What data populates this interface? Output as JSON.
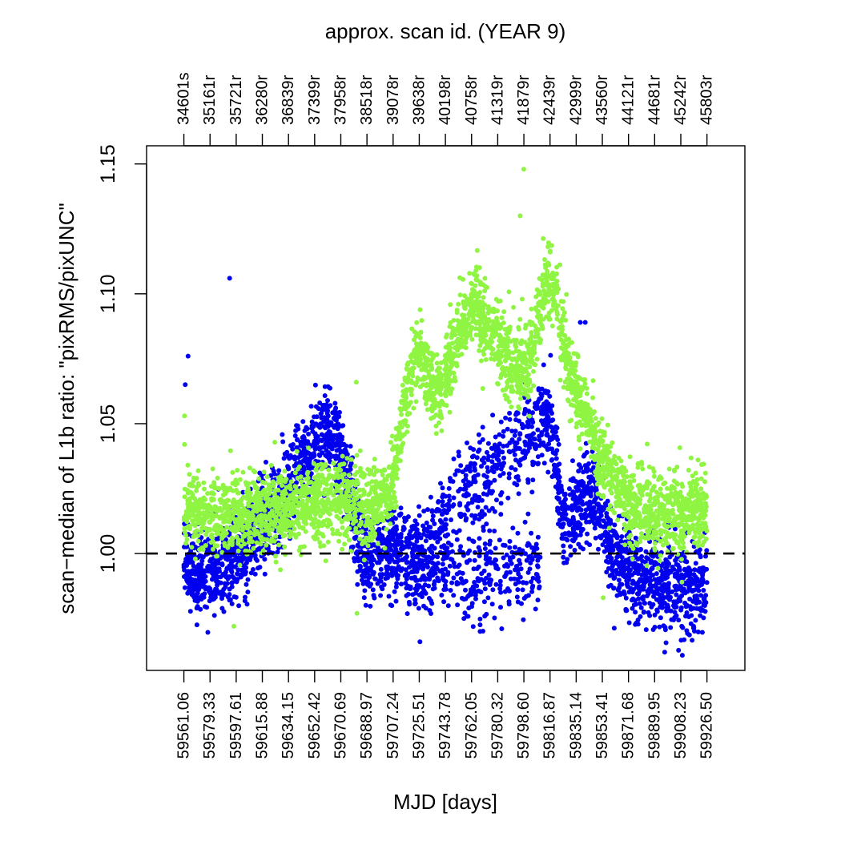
{
  "chart_data": {
    "type": "scatter",
    "title": "",
    "xlabel": "MJD [days]",
    "ylabel": "scan−median of L1b ratio: \"pixRMS/pixUNC\"",
    "top_axis_label": "approx. scan id. (YEAR 9)",
    "x_range": [
      59535.0,
      59953.0
    ],
    "ylim": [
      0.955,
      1.157
    ],
    "y_ticks": [
      1.0,
      1.05,
      1.1,
      1.15
    ],
    "y_tick_labels": [
      "1.00",
      "1.05",
      "1.10",
      "1.15"
    ],
    "x_ticks": [
      59561.06,
      59579.33,
      59597.61,
      59615.88,
      59634.15,
      59652.42,
      59670.69,
      59688.97,
      59707.24,
      59725.51,
      59743.78,
      59762.05,
      59780.32,
      59798.6,
      59816.87,
      59835.14,
      59853.41,
      59871.68,
      59889.95,
      59908.23,
      59926.5
    ],
    "x_tick_labels": [
      "59561.06",
      "59579.33",
      "59597.61",
      "59615.88",
      "59634.15",
      "59652.42",
      "59670.69",
      "59688.97",
      "59707.24",
      "59725.51",
      "59743.78",
      "59762.05",
      "59780.32",
      "59798.60",
      "59816.87",
      "59835.14",
      "59853.41",
      "59871.68",
      "59889.95",
      "59908.23",
      "59926.50"
    ],
    "top_tick_labels": [
      "34601s",
      "35161r",
      "35721r",
      "36280r",
      "36839r",
      "37399r",
      "37958r",
      "38518r",
      "39078r",
      "39638r",
      "40198r",
      "40758r",
      "41319r",
      "41879r",
      "42439r",
      "42999r",
      "43560r",
      "44121r",
      "44681r",
      "45242r",
      "45803r"
    ],
    "reference_line": {
      "y": 1.0,
      "style": "dashed",
      "color": "#000000"
    },
    "grid": false,
    "legend": "none",
    "series": [
      {
        "color": "#0000ee",
        "trend": [
          [
            59561,
            0.993
          ],
          [
            59570,
            0.992
          ],
          [
            59580,
            0.995
          ],
          [
            59590,
            0.996
          ],
          [
            59600,
            1.0
          ],
          [
            59610,
            1.006
          ],
          [
            59620,
            1.014
          ],
          [
            59630,
            1.02
          ],
          [
            59640,
            1.03
          ],
          [
            59650,
            1.04
          ],
          [
            59660,
            1.046
          ],
          [
            59667,
            1.044
          ],
          [
            59673,
            1.035
          ],
          [
            59680,
            1.01
          ],
          [
            59690,
            0.998
          ],
          [
            59700,
            1.002
          ],
          [
            59710,
            1.0
          ],
          [
            59720,
            0.998
          ],
          [
            59730,
            1.005
          ],
          [
            59740,
            1.012
          ],
          [
            59750,
            1.02
          ],
          [
            59760,
            1.025
          ],
          [
            59770,
            1.03
          ],
          [
            59780,
            1.035
          ],
          [
            59790,
            1.04
          ],
          [
            59800,
            1.045
          ],
          [
            59810,
            1.05
          ],
          [
            59816,
            1.054
          ],
          [
            59820,
            1.04
          ],
          [
            59826,
            1.01
          ],
          [
            59832,
            1.015
          ],
          [
            59840,
            1.023
          ],
          [
            59850,
            1.022
          ],
          [
            59858,
            1.005
          ],
          [
            59870,
            0.995
          ],
          [
            59880,
            0.99
          ],
          [
            59890,
            0.988
          ],
          [
            59900,
            0.987
          ],
          [
            59910,
            0.986
          ],
          [
            59920,
            0.985
          ],
          [
            59926,
            0.985
          ]
        ],
        "low_branch": [
          [
            59722,
            0.99
          ],
          [
            59730,
            0.992
          ],
          [
            59740,
            0.995
          ],
          [
            59750,
            0.993
          ],
          [
            59760,
            0.99
          ],
          [
            59770,
            0.99
          ],
          [
            59780,
            0.992
          ],
          [
            59790,
            0.994
          ],
          [
            59800,
            0.995
          ],
          [
            59810,
            0.993
          ]
        ],
        "outliers": [
          [
            59562.0,
            1.065
          ],
          [
            59564.0,
            1.076
          ],
          [
            59593.0,
            1.106
          ],
          [
            59838.0,
            1.089
          ],
          [
            59841.5,
            1.089
          ],
          [
            59897.0,
            0.962
          ],
          [
            59726.0,
            0.966
          ],
          [
            59768.0,
            0.97
          ]
        ]
      },
      {
        "color": "#8ff542",
        "trend": [
          [
            59561,
            1.018
          ],
          [
            59570,
            1.018
          ],
          [
            59580,
            1.016
          ],
          [
            59590,
            1.015
          ],
          [
            59600,
            1.015
          ],
          [
            59610,
            1.016
          ],
          [
            59620,
            1.016
          ],
          [
            59630,
            1.017
          ],
          [
            59640,
            1.018
          ],
          [
            59650,
            1.019
          ],
          [
            59660,
            1.02
          ],
          [
            59670,
            1.02
          ],
          [
            59680,
            1.019
          ],
          [
            59690,
            1.018
          ],
          [
            59700,
            1.02
          ],
          [
            59708,
            1.03
          ],
          [
            59715,
            1.055
          ],
          [
            59720,
            1.068
          ],
          [
            59725,
            1.078
          ],
          [
            59730,
            1.07
          ],
          [
            59735,
            1.064
          ],
          [
            59740,
            1.062
          ],
          [
            59745,
            1.07
          ],
          [
            59750,
            1.08
          ],
          [
            59755,
            1.088
          ],
          [
            59760,
            1.092
          ],
          [
            59765,
            1.098
          ],
          [
            59770,
            1.09
          ],
          [
            59775,
            1.085
          ],
          [
            59780,
            1.082
          ],
          [
            59785,
            1.078
          ],
          [
            59790,
            1.072
          ],
          [
            59795,
            1.07
          ],
          [
            59800,
            1.072
          ],
          [
            59806,
            1.08
          ],
          [
            59810,
            1.095
          ],
          [
            59815,
            1.105
          ],
          [
            59820,
            1.1
          ],
          [
            59825,
            1.085
          ],
          [
            59830,
            1.07
          ],
          [
            59840,
            1.055
          ],
          [
            59850,
            1.04
          ],
          [
            59860,
            1.03
          ],
          [
            59870,
            1.022
          ],
          [
            59880,
            1.018
          ],
          [
            59890,
            1.016
          ],
          [
            59900,
            1.016
          ],
          [
            59910,
            1.016
          ],
          [
            59920,
            1.016
          ],
          [
            59926,
            1.016
          ]
        ],
        "outliers": [
          [
            59561.5,
            1.053
          ],
          [
            59561.5,
            1.042
          ],
          [
            59681.5,
            1.066
          ],
          [
            59796.0,
            1.13
          ],
          [
            59798.5,
            1.148
          ],
          [
            59596.0,
            0.972
          ],
          [
            59682.0,
            0.977
          ],
          [
            59854.0,
            0.983
          ],
          [
            59909.0,
            0.989
          ]
        ]
      }
    ]
  }
}
